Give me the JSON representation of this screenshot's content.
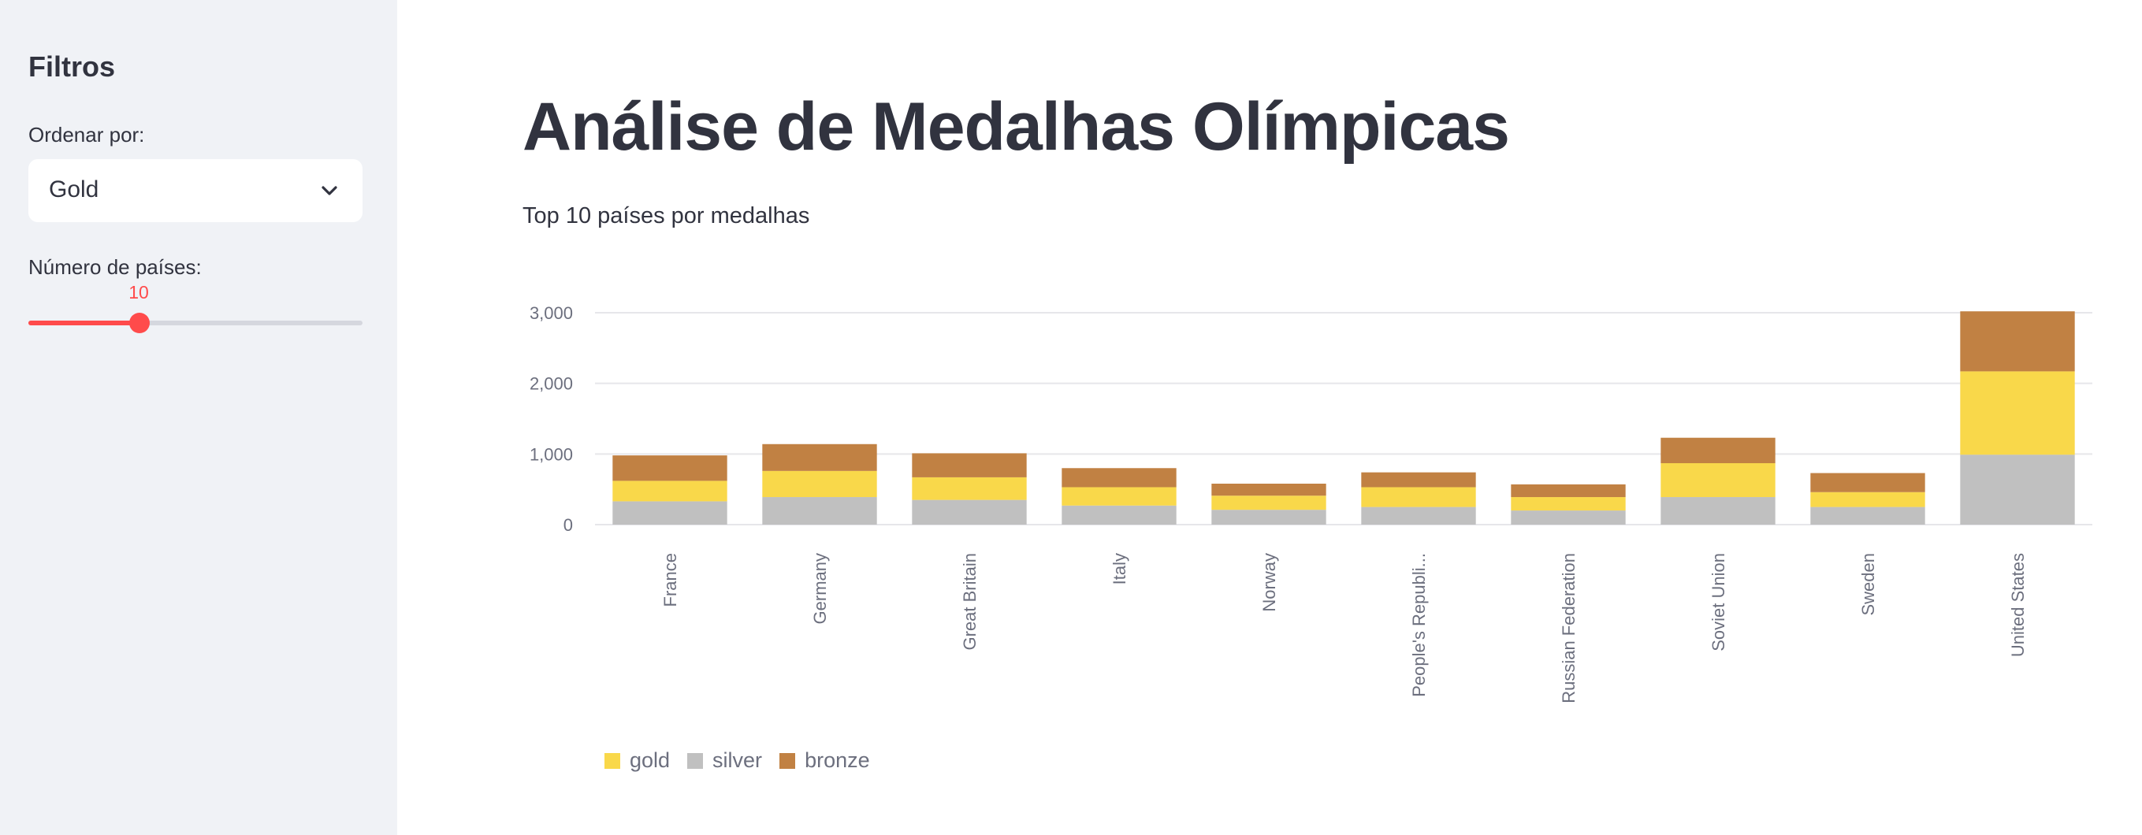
{
  "sidebar": {
    "title": "Filtros",
    "sort_label": "Ordenar por:",
    "sort_value": "Gold",
    "count_label": "Número de países:",
    "count_value": "10",
    "count_fraction": 0.333
  },
  "main": {
    "title": "Análise de Medalhas Olímpicas",
    "subheader": "Top 10 países por medalhas"
  },
  "colors": {
    "gold": "#f9d84a",
    "silver": "#c0c0c0",
    "bronze": "#c18143",
    "accent": "#ff4b4b"
  },
  "chart_data": {
    "type": "bar",
    "stacked": true,
    "categories": [
      "France",
      "Germany",
      "Great Britain",
      "Italy",
      "Norway",
      "People's Republi...",
      "Russian Federation",
      "Soviet Union",
      "Sweden",
      "United States"
    ],
    "series": [
      {
        "name": "silver",
        "values": [
          330,
          390,
          350,
          270,
          210,
          250,
          200,
          390,
          250,
          990
        ]
      },
      {
        "name": "gold",
        "values": [
          290,
          370,
          320,
          260,
          200,
          280,
          190,
          480,
          210,
          1180
        ]
      },
      {
        "name": "bronze",
        "values": [
          360,
          380,
          340,
          270,
          170,
          210,
          180,
          360,
          270,
          850
        ]
      }
    ],
    "ylim": [
      0,
      3000
    ],
    "yticks": [
      "0",
      "1,000",
      "2,000",
      "3,000"
    ],
    "ytick_values": [
      0,
      1000,
      2000,
      3000
    ],
    "legend": [
      "gold",
      "silver",
      "bronze"
    ],
    "legend_position": "bottom-left",
    "grid": true
  }
}
